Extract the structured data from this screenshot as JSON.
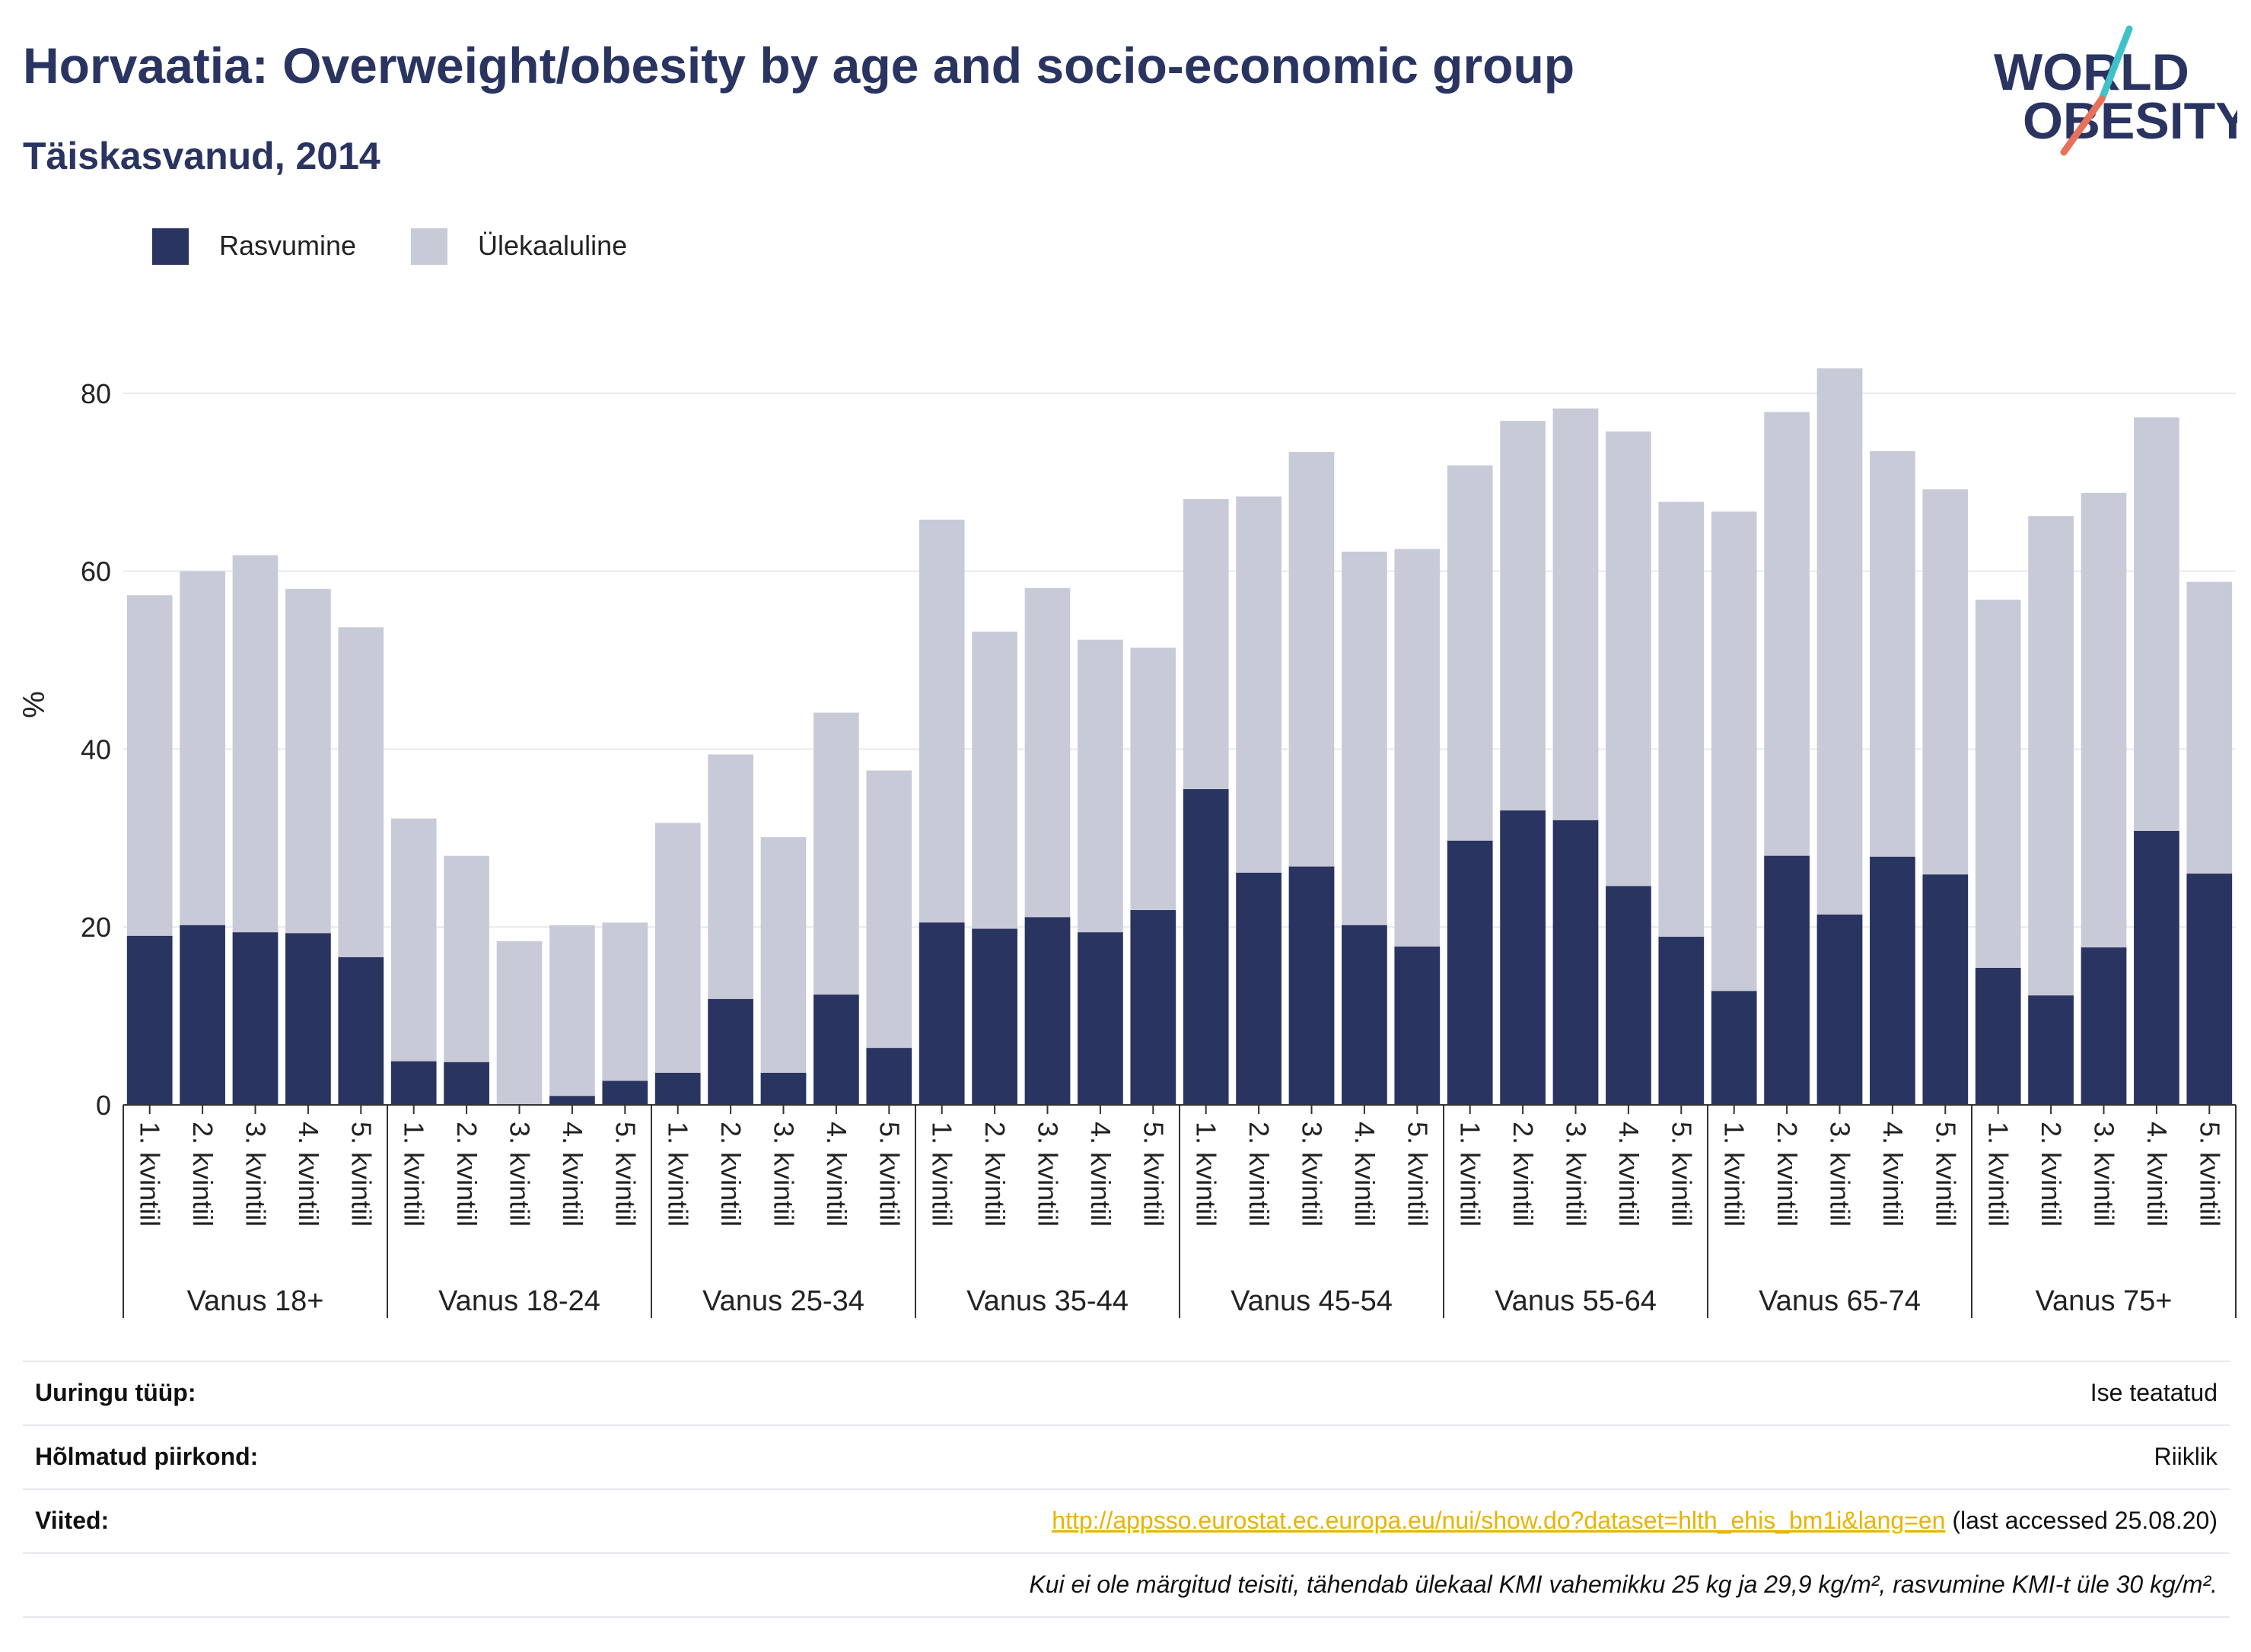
{
  "title": "Horvaatia: Overweight/obesity by age and socio-economic group",
  "subtitle": "Täiskasvanud, 2014",
  "logo": {
    "line1": "WORLD",
    "line2": "OBESITY",
    "colors": [
      "#2a3461",
      "#e8715a",
      "#3fc1c9"
    ]
  },
  "legend": [
    {
      "label": "Rasvumine",
      "color": "#2a3461"
    },
    {
      "label": "Ülekaaluline",
      "color": "#c9cad8"
    }
  ],
  "chart_data": {
    "type": "bar",
    "stacked": true,
    "ylabel": "%",
    "ylim": [
      0,
      90
    ],
    "yticks": [
      0,
      20,
      40,
      60,
      80
    ],
    "grid": true,
    "legend_position": "top-left",
    "groups": [
      {
        "label": "Vanus 18+",
        "categories": [
          "1. kvintiil",
          "2. kvintiil",
          "3. kvintiil",
          "4. kvintiil",
          "5. kvintiil"
        ],
        "obesity": [
          19.0,
          20.2,
          19.4,
          19.3,
          16.6
        ],
        "total": [
          57.3,
          60.0,
          61.8,
          58.0,
          53.7
        ]
      },
      {
        "label": "Vanus 18-24",
        "categories": [
          "1. kvintiil",
          "2. kvintiil",
          "3. kvintiil",
          "4. kvintiil",
          "5. kvintiil"
        ],
        "obesity": [
          4.9,
          4.8,
          0.0,
          1.0,
          2.7
        ],
        "total": [
          32.2,
          28.0,
          18.4,
          20.2,
          20.5
        ]
      },
      {
        "label": "Vanus 25-34",
        "categories": [
          "1. kvintiil",
          "2. kvintiil",
          "3. kvintiil",
          "4. kvintiil",
          "5. kvintiil"
        ],
        "obesity": [
          3.6,
          11.9,
          3.6,
          12.4,
          6.4
        ],
        "total": [
          31.7,
          39.4,
          30.1,
          44.1,
          37.6
        ]
      },
      {
        "label": "Vanus 35-44",
        "categories": [
          "1. kvintiil",
          "2. kvintiil",
          "3. kvintiil",
          "4. kvintiil",
          "5. kvintiil"
        ],
        "obesity": [
          20.5,
          19.8,
          21.1,
          19.4,
          21.9
        ],
        "total": [
          65.8,
          53.2,
          58.1,
          52.3,
          51.4
        ]
      },
      {
        "label": "Vanus 45-54",
        "categories": [
          "1. kvintiil",
          "2. kvintiil",
          "3. kvintiil",
          "4. kvintiil",
          "5. kvintiil"
        ],
        "obesity": [
          35.5,
          26.1,
          26.8,
          20.2,
          17.8
        ],
        "total": [
          68.1,
          68.4,
          73.4,
          62.2,
          62.5
        ]
      },
      {
        "label": "Vanus 55-64",
        "categories": [
          "1. kvintiil",
          "2. kvintiil",
          "3. kvintiil",
          "4. kvintiil",
          "5. kvintiil"
        ],
        "obesity": [
          29.7,
          33.1,
          32.0,
          24.6,
          18.9
        ],
        "total": [
          71.9,
          76.9,
          78.3,
          75.7,
          67.8
        ]
      },
      {
        "label": "Vanus 65-74",
        "categories": [
          "1. kvintiil",
          "2. kvintiil",
          "3. kvintiil",
          "4. kvintiil",
          "5. kvintiil"
        ],
        "obesity": [
          12.8,
          28.0,
          21.4,
          27.9,
          25.9
        ],
        "total": [
          66.7,
          77.9,
          82.8,
          73.5,
          69.2
        ]
      },
      {
        "label": "Vanus 75+",
        "categories": [
          "1. kvintiil",
          "2. kvintiil",
          "3. kvintiil",
          "4. kvintiil",
          "5. kvintiil"
        ],
        "obesity": [
          15.4,
          12.3,
          17.7,
          30.8,
          26.0
        ],
        "total": [
          56.8,
          66.2,
          68.8,
          77.3,
          58.8
        ]
      }
    ]
  },
  "footer": {
    "survey_type": {
      "label": "Uuringu tüüp:",
      "value": "Ise teatatud"
    },
    "region": {
      "label": "Hõlmatud piirkond:",
      "value": "Riiklik"
    },
    "references": {
      "label": "Viited:",
      "link": "http://appsso.eurostat.ec.europa.eu/nui/show.do?dataset=hlth_ehis_bm1i&lang=en",
      "suffix": " (last accessed 25.08.20)"
    },
    "note": "Kui ei ole märgitud teisiti, tähendab ülekaal KMI vahemikku 25 kg ja 29,9 kg/m², rasvumine KMI-t üle 30 kg/m²."
  }
}
